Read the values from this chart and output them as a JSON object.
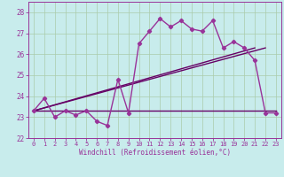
{
  "xlabel": "Windchill (Refroidissement éolien,°C)",
  "background_color": "#c8ecec",
  "grid_color": "#aaccaa",
  "line_color": "#993399",
  "dark_line_color": "#660066",
  "xlim": [
    -0.5,
    23.5
  ],
  "ylim": [
    22.0,
    28.5
  ],
  "yticks": [
    22,
    23,
    24,
    25,
    26,
    27,
    28
  ],
  "xticks": [
    0,
    1,
    2,
    3,
    4,
    5,
    6,
    7,
    8,
    9,
    10,
    11,
    12,
    13,
    14,
    15,
    16,
    17,
    18,
    19,
    20,
    21,
    22,
    23
  ],
  "hours": [
    0,
    1,
    2,
    3,
    4,
    5,
    6,
    7,
    8,
    9,
    10,
    11,
    12,
    13,
    14,
    15,
    16,
    17,
    18,
    19,
    20,
    21,
    22,
    23
  ],
  "windchill": [
    23.3,
    23.9,
    23.0,
    23.3,
    23.1,
    23.3,
    22.8,
    22.6,
    24.8,
    23.2,
    26.5,
    27.1,
    27.7,
    27.3,
    27.6,
    27.2,
    27.1,
    27.6,
    26.3,
    26.6,
    26.3,
    25.7,
    23.2,
    23.2
  ],
  "horiz_line_x": [
    0,
    23
  ],
  "horiz_line_y": [
    23.3,
    23.3
  ],
  "diag_line1_x": [
    0,
    21
  ],
  "diag_line1_y": [
    23.3,
    26.3
  ],
  "diag_line2_x": [
    0,
    22
  ],
  "diag_line2_y": [
    23.3,
    26.3
  ]
}
